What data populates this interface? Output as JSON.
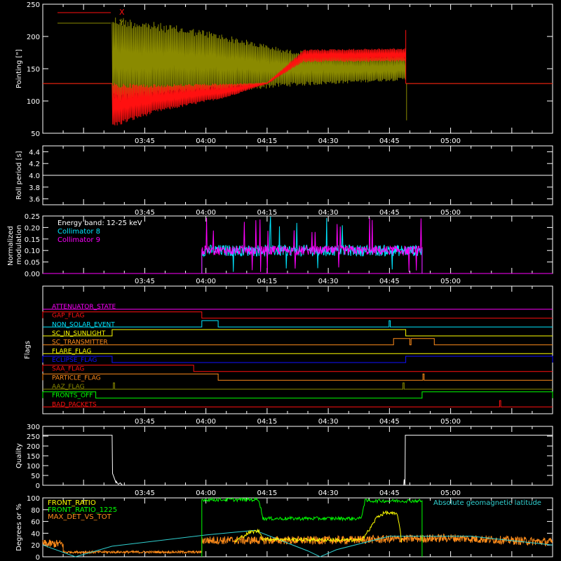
{
  "colors": {
    "background": "#000000",
    "axis": "#ffffff",
    "red": "#ff1010",
    "olive": "#8a8a00",
    "cyan": "#00e5ff",
    "magenta": "#ff00ff",
    "yellow": "#ffff00",
    "green": "#00ff00",
    "orange": "#ff8c1a",
    "blue": "#1010ff",
    "teal": "#30d0d0"
  },
  "time_ticks": [
    "03:45",
    "04:00",
    "04:15",
    "04:30",
    "04:45",
    "05:00"
  ],
  "chart_data": [
    {
      "type": "line",
      "name": "pointing",
      "ylabel": "Pointing [\"]",
      "ylim": [
        50,
        250
      ],
      "yticks": [
        "50",
        "100",
        "150",
        "200",
        "250"
      ],
      "legend": [
        "X",
        "Y"
      ],
      "legend_position": "top-left",
      "series": [
        {
          "name": "X",
          "color": "red",
          "baseline": 127,
          "active_start": "03:37",
          "active_end": "04:49",
          "envelope_min": [
            [
              "03:37",
              58
            ],
            [
              "03:48",
              82
            ],
            [
              "04:05",
              105
            ],
            [
              "04:15",
              127
            ],
            [
              "04:24",
              160
            ],
            [
              "04:49",
              161
            ]
          ],
          "envelope_max": [
            [
              "03:37",
              128
            ],
            [
              "03:48",
              126
            ],
            [
              "04:15",
              128
            ],
            [
              "04:24",
              180
            ],
            [
              "04:49",
              182
            ]
          ]
        },
        {
          "name": "Y",
          "color": "olive",
          "baseline": 127,
          "active_start": "03:37",
          "active_end": "04:49",
          "envelope_min": [
            [
              "03:37",
              95
            ],
            [
              "04:00",
              110
            ],
            [
              "04:20",
              122
            ],
            [
              "04:49",
              132
            ]
          ],
          "envelope_max": [
            [
              "03:37",
              233
            ],
            [
              "04:00",
              210
            ],
            [
              "04:20",
              180
            ],
            [
              "04:35",
              172
            ],
            [
              "04:49",
              170
            ]
          ]
        }
      ]
    },
    {
      "type": "line",
      "name": "roll-period",
      "ylabel": "Roll period [s]",
      "ylim": [
        3.5,
        4.5
      ],
      "yticks": [
        "3.6",
        "3.8",
        "4.0",
        "4.2",
        "4.4"
      ],
      "series": [
        {
          "name": "roll",
          "color": "axis",
          "x": [
            "03:20",
            "05:25"
          ],
          "y": [
            4.0,
            4.0
          ]
        }
      ]
    },
    {
      "type": "line",
      "name": "modulation",
      "ylabel": "Normalized modulation",
      "ylim": [
        0,
        0.25
      ],
      "yticks": [
        "0.00",
        "0.05",
        "0.10",
        "0.15",
        "0.20",
        "0.25"
      ],
      "legend": [
        "Energy band: 12-25 keV",
        "Collimator 8",
        "Collimator 9"
      ],
      "legend_position": "top-left",
      "series": [
        {
          "name": "Collimator 8",
          "color": "cyan",
          "active_start": "03:59",
          "active_end": "04:53",
          "level": 0.1,
          "spread": 0.025
        },
        {
          "name": "Collimator 9",
          "color": "magenta",
          "active_start": "03:59",
          "active_end": "04:53",
          "level": 0.1,
          "spread": 0.02
        }
      ]
    },
    {
      "type": "line",
      "name": "flags",
      "ylabel": "Flags",
      "flags": [
        {
          "label": "ATTENUATOR_STATE",
          "color": "magenta",
          "highs": []
        },
        {
          "label": "GAP_FLAG",
          "color": "red",
          "highs": [
            [
              "03:20",
              "03:59"
            ]
          ]
        },
        {
          "label": "NON_SOLAR_EVENT",
          "color": "cyan",
          "highs": [
            [
              "03:59",
              "04:03"
            ],
            [
              "04:44.9",
              "04:45.2"
            ]
          ]
        },
        {
          "label": "SC_IN_SUNLIGHT",
          "color": "yellow",
          "highs": [
            [
              "03:37",
              "04:49"
            ]
          ]
        },
        {
          "label": "SC_TRANSMITTER",
          "color": "orange",
          "highs": [
            [
              "04:46",
              "04:50"
            ],
            [
              "04:50.3",
              "04:56"
            ]
          ]
        },
        {
          "label": "FLARE_FLAG",
          "color": "yellow",
          "highs": []
        },
        {
          "label": "ECLIPSE_FLAG",
          "color": "blue",
          "highs": [
            [
              "03:20",
              "03:37"
            ],
            [
              "04:49",
              "05:25"
            ]
          ]
        },
        {
          "label": "SAA_FLAG",
          "color": "red",
          "highs": [
            [
              "03:20",
              "03:57"
            ]
          ]
        },
        {
          "label": "PARTICLE_FLAG",
          "color": "orange",
          "highs": [
            [
              "03:20",
              "04:03"
            ],
            [
              "04:53.2",
              "04:53.5"
            ]
          ]
        },
        {
          "label": "AAZ_FLAG",
          "color": "olive",
          "highs": [
            [
              "03:37.3",
              "03:37.6"
            ],
            [
              "04:48.3",
              "04:48.6"
            ]
          ]
        },
        {
          "label": "FRONTS_OFF",
          "color": "green",
          "highs": [
            [
              "03:20",
              "03:33"
            ],
            [
              "04:53",
              "05:25"
            ]
          ]
        },
        {
          "label": "BAD_PACKETS",
          "color": "red",
          "highs": [
            [
              "05:12",
              "05:12.3"
            ]
          ]
        }
      ]
    },
    {
      "type": "line",
      "name": "quality",
      "ylabel": "Quality",
      "ylim": [
        0,
        300
      ],
      "yticks": [
        "0",
        "50",
        "100",
        "150",
        "200",
        "250",
        "300"
      ],
      "series": [
        {
          "name": "quality",
          "color": "axis",
          "x": [
            "03:20",
            "03:37",
            "03:37.1",
            "03:38",
            "03:38",
            "03:38.5",
            "03:39",
            "03:39.5",
            "04:48.5",
            "04:48.6",
            "04:48.8",
            "04:48.9",
            "05:25"
          ],
          "y": [
            255,
            255,
            60,
            10,
            20,
            5,
            12,
            0,
            0,
            30,
            0,
            255,
            255
          ]
        }
      ]
    },
    {
      "type": "line",
      "name": "ratios",
      "ylabel": "Degrees or %",
      "ylim": [
        0,
        100
      ],
      "yticks": [
        "0",
        "20",
        "40",
        "60",
        "80",
        "100"
      ],
      "legend": [
        "FRONT_RATIO",
        "FRONT_RATIO_1225",
        "MAX_DET_VS_TOT",
        "Absolute geomagnetic latitude"
      ],
      "legend_position": "top",
      "series": [
        {
          "name": "FRONT_RATIO",
          "color": "yellow",
          "x": [
            "04:07",
            "04:09",
            "04:11",
            "04:13",
            "04:14",
            "04:38",
            "04:40",
            "04:42",
            "04:44",
            "04:47",
            "04:48"
          ],
          "y": [
            25,
            35,
            42,
            44,
            30,
            28,
            45,
            68,
            75,
            72,
            25
          ]
        },
        {
          "name": "FRONT_RATIO_1225",
          "color": "green",
          "x": [
            "03:59",
            "03:59",
            "04:13",
            "04:14",
            "04:38",
            "04:39",
            "04:53",
            "04:53"
          ],
          "y": [
            0,
            97,
            97,
            65,
            65,
            95,
            95,
            0
          ]
        },
        {
          "name": "MAX_DET_VS_TOT",
          "color": "orange",
          "x": [
            "03:20",
            "03:25",
            "03:25",
            "03:59",
            "03:59",
            "04:30",
            "05:00",
            "05:25"
          ],
          "y": [
            22,
            22,
            8,
            8,
            28,
            28,
            32,
            25
          ]
        },
        {
          "name": "Absolute geomagnetic latitude",
          "color": "teal",
          "x": [
            "03:20",
            "03:28",
            "03:37",
            "04:00",
            "04:12",
            "04:25",
            "04:28",
            "04:32",
            "04:45",
            "05:05",
            "05:25"
          ],
          "y": [
            20,
            0,
            18,
            37,
            45,
            10,
            0,
            12,
            35,
            35,
            20
          ]
        }
      ]
    }
  ]
}
